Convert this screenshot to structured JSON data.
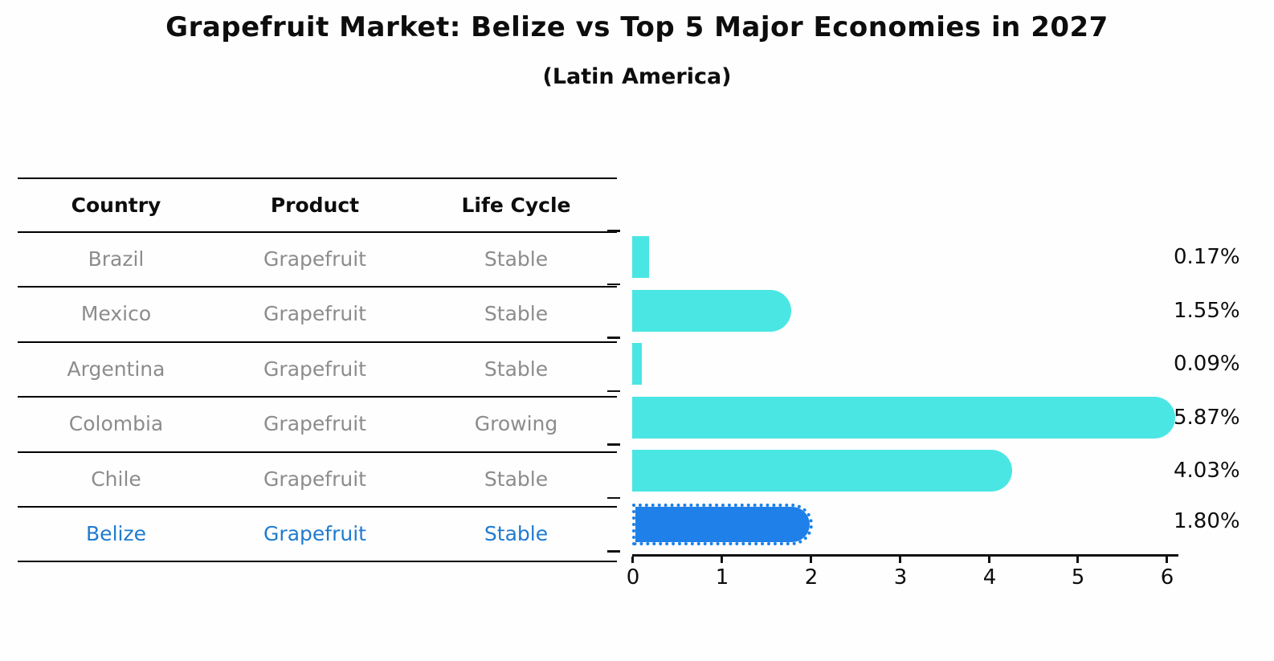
{
  "title": "Grapefruit Market: Belize vs Top 5 Major Economies in 2027",
  "subtitle": "(Latin America)",
  "table": {
    "headers": [
      "Country",
      "Product",
      "Life Cycle"
    ],
    "rows": [
      {
        "country": "Brazil",
        "product": "Grapefruit",
        "life_cycle": "Stable",
        "highlighted": false
      },
      {
        "country": "Mexico",
        "product": "Grapefruit",
        "life_cycle": "Stable",
        "highlighted": false
      },
      {
        "country": "Argentina",
        "product": "Grapefruit",
        "life_cycle": "Stable",
        "highlighted": false
      },
      {
        "country": "Colombia",
        "product": "Grapefruit",
        "life_cycle": "Growing",
        "highlighted": false
      },
      {
        "country": "Chile",
        "product": "Grapefruit",
        "life_cycle": "Stable",
        "highlighted": false
      },
      {
        "country": "Belize",
        "product": "Grapefruit",
        "life_cycle": "Stable",
        "highlighted": true
      }
    ]
  },
  "chart_data": {
    "type": "bar",
    "orientation": "horizontal",
    "title": "Grapefruit Market: Belize vs Top 5 Major Economies in 2027",
    "subtitle": "(Latin America)",
    "categories": [
      "Brazil",
      "Mexico",
      "Argentina",
      "Colombia",
      "Chile",
      "Belize"
    ],
    "values": [
      0.17,
      1.55,
      0.09,
      5.87,
      4.03,
      1.8
    ],
    "value_labels": [
      "0.17%",
      "1.55%",
      "0.09%",
      "5.87%",
      "4.03%",
      "1.80%"
    ],
    "unit": "percent",
    "xticks": [
      "0",
      "1",
      "2",
      "3",
      "4",
      "5",
      "6"
    ],
    "xlim": [
      0,
      6.15
    ],
    "grid": false,
    "legend": false,
    "highlight_index": 5,
    "bar_color": "#4AE6E4",
    "highlight_bar_color": "#1E80E8",
    "highlight_text_color": "#1F7BD0",
    "row_text_color": "#8C8C8C"
  }
}
